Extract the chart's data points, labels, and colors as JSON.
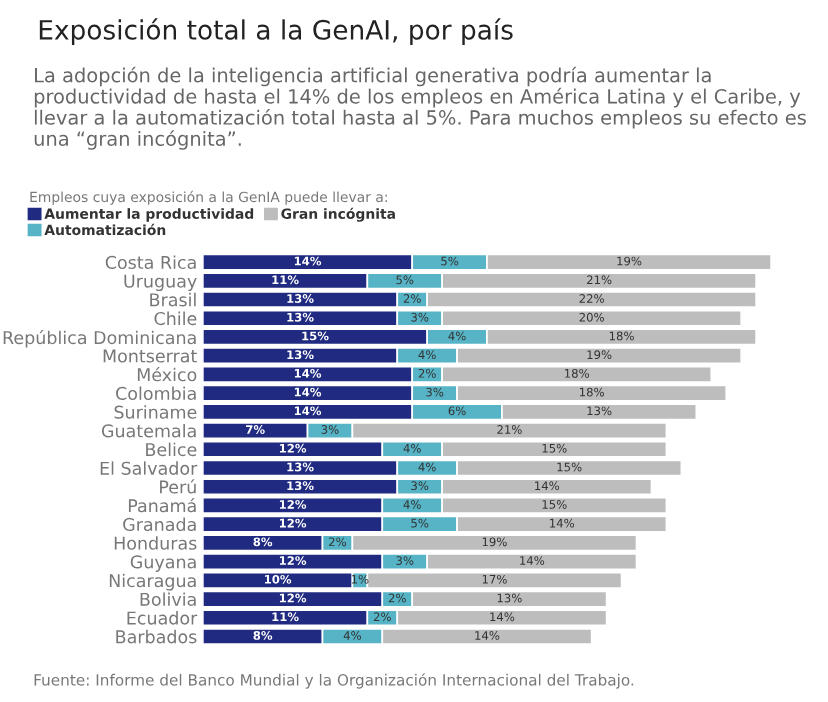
{
  "chart_data": {
    "type": "bar",
    "orientation": "horizontal",
    "stacked": true,
    "tick_labels": "y",
    "grid": false,
    "legend": "top left",
    "title": "Exposición total a la GenAI, por país",
    "subtitle": "La adopción de la inteligencia artificial generativa podría aumentar la productividad de hasta el 14% de los empleos en América Latina y el Caribe, y llevar a la automatización total hasta al 5%. Para muchos empleos su efecto es una “gran incógnita”.",
    "legend_title": "Empleos cuya exposición a la GenIA puede llevar a:",
    "annotations": [
      "Fuente: Informe del Banco Mundial y la Organización Internacional del Trabajo."
    ],
    "categories": [
      "Costa Rica",
      "Uruguay",
      "Brasil",
      "Chile",
      "República Dominicana",
      "Montserrat",
      "México",
      "Colombia",
      "Suriname",
      "Guatemala",
      "Belice",
      "El Salvador",
      "Perú",
      "Panamá",
      "Granada",
      "Honduras",
      "Guyana",
      "Nicaragua",
      "Bolivia",
      "Ecuador",
      "Barbados"
    ],
    "series": [
      {
        "name": "Aumentar la productividad",
        "color": "#1f2a80",
        "values": [
          14,
          11,
          13,
          13,
          15,
          13,
          14,
          14,
          14,
          7,
          12,
          13,
          13,
          12,
          12,
          8,
          12,
          10,
          12,
          11,
          8
        ],
        "value_labels": [
          "14%",
          "11%",
          "13%",
          "13%",
          "15%",
          "13%",
          "14%",
          "14%",
          "14%",
          "7%",
          "12%",
          "13%",
          "13%",
          "12%",
          "12%",
          "8%",
          "12%",
          "10%",
          "12%",
          "11%",
          "8%"
        ]
      },
      {
        "name": "Automatización",
        "color": "#56b4c6",
        "values": [
          5,
          5,
          2,
          3,
          4,
          4,
          2,
          3,
          6,
          3,
          4,
          4,
          3,
          4,
          5,
          2,
          3,
          1,
          2,
          2,
          4
        ],
        "value_labels": [
          "5%",
          "5%",
          "2%",
          "3%",
          "4%",
          "4%",
          "2%",
          "3%",
          "6%",
          "3%",
          "4%",
          "4%",
          "3%",
          "4%",
          "5%",
          "2%",
          "3%",
          "1%",
          "2%",
          "2%",
          "4%"
        ]
      },
      {
        "name": "Gran incógnita",
        "color": "#bdbdbd",
        "values": [
          19,
          21,
          22,
          20,
          18,
          19,
          18,
          18,
          13,
          21,
          15,
          15,
          14,
          15,
          14,
          19,
          14,
          17,
          13,
          14,
          14
        ],
        "value_labels": [
          "19%",
          "21%",
          "22%",
          "20%",
          "18%",
          "19%",
          "18%",
          "18%",
          "13%",
          "21%",
          "15%",
          "15%",
          "14%",
          "15%",
          "14%",
          "19%",
          "14%",
          "17%",
          "13%",
          "14%",
          "14%"
        ]
      }
    ]
  }
}
